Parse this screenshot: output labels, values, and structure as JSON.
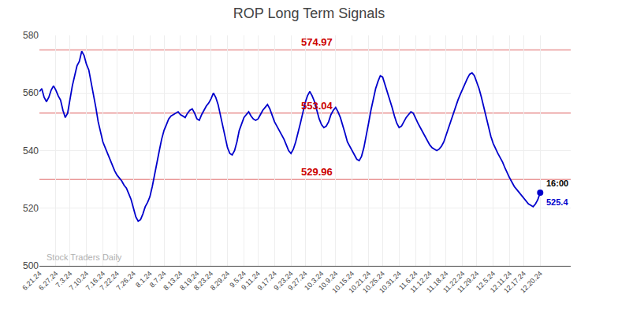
{
  "chart_data": {
    "type": "line",
    "title": "ROP Long Term Signals",
    "color": "#0000cc",
    "grid": true,
    "ylim": [
      500,
      580
    ],
    "yticks": [
      500,
      520,
      540,
      560,
      580
    ],
    "hlines": [
      {
        "value": 574.97,
        "color": "#cc0000"
      },
      {
        "value": 553.04,
        "color": "#cc0000"
      },
      {
        "value": 529.96,
        "color": "#cc0000"
      }
    ],
    "annotations": [
      "Stock Traders Daily",
      "16:00"
    ],
    "categories": [
      "6.21.24",
      null,
      null,
      null,
      null,
      null,
      null,
      "6.27.24",
      null,
      null,
      null,
      null,
      null,
      "7.3.24",
      null,
      null,
      null,
      null,
      null,
      null,
      "7.10.24",
      null,
      null,
      null,
      null,
      null,
      null,
      "7.16.24",
      null,
      null,
      null,
      null,
      null,
      "7.22.24",
      null,
      null,
      null,
      null,
      null,
      null,
      "7.26.24",
      null,
      null,
      null,
      null,
      null,
      null,
      "8.1.24",
      null,
      null,
      null,
      null,
      null,
      "8.7.24",
      null,
      null,
      null,
      null,
      null,
      null,
      "8.13.24",
      null,
      null,
      null,
      null,
      null,
      null,
      "8.19.24",
      null,
      null,
      null,
      null,
      null,
      "8.23.24",
      null,
      null,
      null,
      null,
      null,
      null,
      "8.29.24",
      null,
      null,
      null,
      null,
      null,
      null,
      "9.5.24",
      null,
      null,
      null,
      null,
      null,
      "9.11.24",
      null,
      null,
      null,
      null,
      null,
      null,
      "9.17.24",
      null,
      null,
      null,
      null,
      null,
      null,
      "9.23.24",
      null,
      null,
      null,
      null,
      null,
      "9.27.24",
      null,
      null,
      null,
      null,
      null,
      null,
      "10.3.24",
      null,
      null,
      null,
      null,
      null,
      "10.9.24",
      null,
      null,
      null,
      null,
      null,
      null,
      "10.15.24",
      null,
      null,
      null,
      null,
      null,
      null,
      "10.21.24",
      null,
      null,
      null,
      null,
      null,
      "10.25.24",
      null,
      null,
      null,
      null,
      null,
      null,
      "10.31.24",
      null,
      null,
      null,
      null,
      null,
      null,
      "11.6.24",
      null,
      null,
      null,
      null,
      null,
      "11.12.24",
      null,
      null,
      null,
      null,
      null,
      null,
      "11.18.24",
      null,
      null,
      null,
      null,
      null,
      null,
      "11.22.24",
      null,
      null,
      null,
      null,
      null,
      "11.29.24",
      null,
      null,
      null,
      null,
      null,
      null,
      "12.5.24",
      null,
      null,
      null,
      null,
      null,
      null,
      "12.11.24",
      null,
      null,
      null,
      null,
      null,
      "12.17.24",
      null,
      null,
      null,
      null,
      null,
      null,
      "12.20.24"
    ],
    "values": [
      560.5,
      561.5,
      558.5,
      557.0,
      558.5,
      561.0,
      562.5,
      561.0,
      559.0,
      557.5,
      554.0,
      551.5,
      553.0,
      558.0,
      562.5,
      566.0,
      569.5,
      571.0,
      574.5,
      573.0,
      570.0,
      568.0,
      564.0,
      560.0,
      555.0,
      550.0,
      546.0,
      543.0,
      541.0,
      539.0,
      537.0,
      534.5,
      533.0,
      531.5,
      530.5,
      529.5,
      528.0,
      527.0,
      525.0,
      523.0,
      520.0,
      517.0,
      515.5,
      516.0,
      518.0,
      520.5,
      522.0,
      524.0,
      527.5,
      532.0,
      536.0,
      540.0,
      544.0,
      547.0,
      549.0,
      551.0,
      552.0,
      552.5,
      553.0,
      553.5,
      552.5,
      552.0,
      551.5,
      553.0,
      554.0,
      554.5,
      553.0,
      551.0,
      550.5,
      552.5,
      554.0,
      555.5,
      556.5,
      558.0,
      560.0,
      558.5,
      556.0,
      552.0,
      548.0,
      544.0,
      541.0,
      539.0,
      538.5,
      540.0,
      543.0,
      547.0,
      549.0,
      551.5,
      552.5,
      553.5,
      552.0,
      551.0,
      550.5,
      551.0,
      552.5,
      554.0,
      555.0,
      556.0,
      554.5,
      552.0,
      550.0,
      548.5,
      547.0,
      545.5,
      544.0,
      542.0,
      540.0,
      539.0,
      540.5,
      543.0,
      546.0,
      549.5,
      553.0,
      556.5,
      559.0,
      560.5,
      559.0,
      557.0,
      554.0,
      551.0,
      549.0,
      548.0,
      548.5,
      550.0,
      552.5,
      554.0,
      555.0,
      553.5,
      551.5,
      549.0,
      546.0,
      543.0,
      541.5,
      540.0,
      538.5,
      537.0,
      536.5,
      538.0,
      541.0,
      545.0,
      549.5,
      554.0,
      558.0,
      561.5,
      564.0,
      566.0,
      565.5,
      563.0,
      560.0,
      557.5,
      555.0,
      552.0,
      549.5,
      548.0,
      548.5,
      550.0,
      551.5,
      552.5,
      553.5,
      553.0,
      551.0,
      549.5,
      548.0,
      546.5,
      545.0,
      543.5,
      542.0,
      541.0,
      540.5,
      540.0,
      540.5,
      541.5,
      543.0,
      545.5,
      548.0,
      550.5,
      553.0,
      555.5,
      557.5,
      559.5,
      561.5,
      563.5,
      565.0,
      566.5,
      567.0,
      566.0,
      564.0,
      561.5,
      558.5,
      555.0,
      551.5,
      548.0,
      545.0,
      542.5,
      540.5,
      539.0,
      537.5,
      536.0,
      534.0,
      532.0,
      530.5,
      529.0,
      527.5,
      526.5,
      525.5,
      524.5,
      523.5,
      522.5,
      521.5,
      521.0,
      520.5,
      521.5,
      523.0,
      525.4
    ]
  }
}
